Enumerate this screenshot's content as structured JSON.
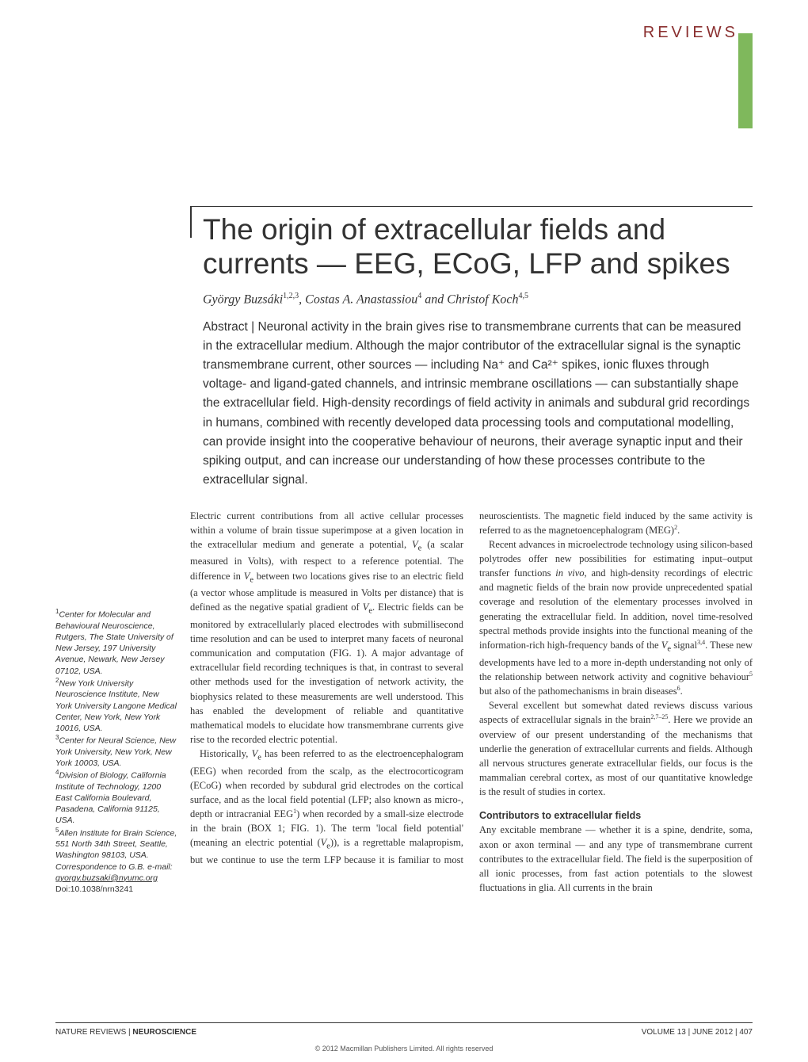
{
  "header": {
    "section_label": "REVIEWS",
    "tab_color": "#7fb85c",
    "label_color": "#8a2f2f"
  },
  "article": {
    "title": "The origin of extracellular fields and currents — EEG, ECoG, LFP and spikes",
    "authors_html": "György Buzsáki<sup>1,2,3</sup>, Costas A. Anastassiou<sup>4</sup> and Christof Koch<sup>4,5</sup>",
    "abstract": "Abstract | Neuronal activity in the brain gives rise to transmembrane currents that can be measured in the extracellular medium. Although the major contributor of the extracellular signal is the synaptic transmembrane current, other sources — including Na⁺ and Ca²⁺ spikes, ionic fluxes through voltage- and ligand-gated channels, and intrinsic membrane oscillations — can substantially shape the extracellular field. High-density recordings of field activity in animals and subdural grid recordings in humans, combined with recently developed data processing tools and computational modelling, can provide insight into the cooperative behaviour of neurons, their average synaptic input and their spiking output, and can increase our understanding of how these processes contribute to the extracellular signal."
  },
  "affiliations_html": "<sup>1</sup>Center for Molecular and Behavioural Neuroscience, Rutgers, The State University of New Jersey, 197 University Avenue, Newark, New Jersey 07102, USA.<br><sup>2</sup>New York University Neuroscience Institute, New York University Langone Medical Center, New York, New York 10016, USA.<br><sup>3</sup>Center for Neural Science, New York University, New York, New York 10003, USA.<br><sup>4</sup>Division of Biology, California Institute of Technology, 1200 East California Boulevard, Pasadena, California 91125, USA.<br><sup>5</sup>Allen Institute for Brain Science, 551 North 34th Street, Seattle, Washington 98103, USA.<br>Correspondence to G.B. e-mail: <u>gyorgy.buzsaki@nyumc.org</u><br><span class=\"doi-link\">Doi:10.1038/nrn3241</span>",
  "body": {
    "para1": "Electric current contributions from all active cellular processes within a volume of brain tissue superimpose at a given location in the extracellular medium and generate a potential, <span class=\"ve\">V</span><sub>e</sub> (a scalar measured in Volts), with respect to a reference potential. The difference in <span class=\"ve\">V</span><sub>e</sub> between two locations gives rise to an electric field (a vector whose amplitude is measured in Volts per distance) that is defined as the negative spatial gradient of <span class=\"ve\">V</span><sub>e</sub>. Electric fields can be monitored by extracellularly placed electrodes with submillisecond time resolution and can be used to interpret many facets of neuronal communication and computation (FIG. 1). A major advantage of extracellular field recording techniques is that, in contrast to several other methods used for the investigation of network activity, the biophysics related to these measurements are well understood. This has enabled the development of reliable and quantitative mathematical models to elucidate how transmembrane currents give rise to the recorded electric potential.",
    "para2": "Historically, <span class=\"ve\">V</span><sub>e</sub> has been referred to as the electroencephalogram (EEG) when recorded from the scalp, as the electrocorticogram (ECoG) when recorded by subdural grid electrodes on the cortical surface, and as the local field potential (LFP; also known as micro-, depth or intracranial EEG<sup>1</sup>) when recorded by a small-size electrode in the brain (BOX 1; FIG. 1). The term 'local field potential' (meaning an electric potential (<span class=\"ve\">V</span><sub>e</sub>)), is a regrettable malapropism, but we continue to use the term LFP because it is familiar to most neuroscientists. The magnetic field induced by the same activity is referred to as the magnetoencephalogram (MEG)<sup>2</sup>.",
    "para3": "Recent advances in microelectrode technology using silicon-based polytrodes offer new possibilities for estimating input–output transfer functions <i>in vivo</i>, and high-density recordings of electric and magnetic fields of the brain now provide unprecedented spatial coverage and resolution of the elementary processes involved in generating the extracellular field. In addition, novel time-resolved spectral methods provide insights into the functional meaning of the information-rich high-frequency bands of the <span class=\"ve\">V</span><sub>e</sub> signal<sup>3,4</sup>. These new developments have led to a more in-depth understanding not only of the relationship between network activity and cognitive behaviour<sup>5</sup> but also of the pathomechanisms in brain diseases<sup>6</sup>.",
    "para4": "Several excellent but somewhat dated reviews discuss various aspects of extracellular signals in the brain<sup>2,7–25</sup>. Here we provide an overview of our present understanding of the mechanisms that underlie the generation of extracellular currents and fields. Although all nervous structures generate extracellular fields, our focus is the mammalian cerebral cortex, as most of our quantitative knowledge is the result of studies in cortex.",
    "subheading": "Contributors to extracellular fields",
    "para5": "Any excitable membrane — whether it is a spine, dendrite, soma, axon or axon terminal — and any type of transmembrane current contributes to the extracellular field. The field is the superposition of all ionic processes, from fast action potentials to the slowest fluctuations in glia. All currents in the brain"
  },
  "footer": {
    "journal_html": "NATURE REVIEWS | <strong>NEUROSCIENCE</strong>",
    "issue": "VOLUME 13 | JUNE 2012 | 407",
    "copyright": "© 2012 Macmillan Publishers Limited. All rights reserved"
  }
}
